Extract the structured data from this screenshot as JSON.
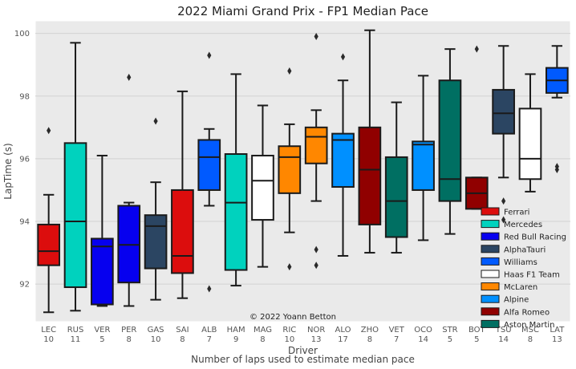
{
  "chart_data": {
    "type": "box",
    "title": "2022 Miami Grand Prix - FP1 Median Pace",
    "xlabel": "Driver",
    "xlabel_sub": "Number of laps used to estimate median pace",
    "ylabel": "LapTime (s)",
    "ylim": [
      90.8,
      100.4
    ],
    "yticks": [
      "92",
      "94",
      "96",
      "98",
      "100"
    ],
    "grid": true,
    "legend_position": "bottom-right",
    "credit": "© 2022 Yoann Betton",
    "teams": [
      {
        "name": "Ferrari",
        "color": "#dc0d0d"
      },
      {
        "name": "Mercedes",
        "color": "#00d2be"
      },
      {
        "name": "Red Bull Racing",
        "color": "#0600ef"
      },
      {
        "name": "AlphaTauri",
        "color": "#2b4562"
      },
      {
        "name": "Williams",
        "color": "#005aff"
      },
      {
        "name": "Haas F1 Team",
        "color": "#ffffff"
      },
      {
        "name": "McLaren",
        "color": "#ff8700"
      },
      {
        "name": "Alpine",
        "color": "#0090ff"
      },
      {
        "name": "Alfa Romeo",
        "color": "#900000"
      },
      {
        "name": "Aston Martin",
        "color": "#006f62"
      }
    ],
    "drivers": [
      {
        "code": "LEC",
        "laps": "10",
        "team": "Ferrari",
        "whislo": 91.1,
        "q1": 92.6,
        "med": 93.05,
        "q3": 93.9,
        "whishi": 94.85,
        "fliers": [
          96.9
        ]
      },
      {
        "code": "RUS",
        "laps": "11",
        "team": "Mercedes",
        "whislo": 91.15,
        "q1": 91.9,
        "med": 94.0,
        "q3": 96.5,
        "whishi": 99.7,
        "fliers": []
      },
      {
        "code": "VER",
        "laps": "5",
        "team": "Red Bull Racing",
        "whislo": 91.3,
        "q1": 91.35,
        "med": 93.2,
        "q3": 93.45,
        "whishi": 96.1,
        "fliers": []
      },
      {
        "code": "PER",
        "laps": "8",
        "team": "Red Bull Racing",
        "whislo": 91.3,
        "q1": 92.05,
        "med": 93.25,
        "q3": 94.5,
        "whishi": 94.6,
        "fliers": [
          98.6
        ]
      },
      {
        "code": "GAS",
        "laps": "10",
        "team": "AlphaTauri",
        "whislo": 91.5,
        "q1": 92.5,
        "med": 93.85,
        "q3": 94.2,
        "whishi": 95.25,
        "fliers": [
          97.2
        ]
      },
      {
        "code": "SAI",
        "laps": "8",
        "team": "Ferrari",
        "whislo": 91.55,
        "q1": 92.35,
        "med": 92.9,
        "q3": 95.0,
        "whishi": 98.15,
        "fliers": []
      },
      {
        "code": "ALB",
        "laps": "7",
        "team": "Williams",
        "whislo": 94.5,
        "q1": 95.0,
        "med": 96.05,
        "q3": 96.6,
        "whishi": 96.95,
        "fliers": [
          99.3,
          91.85
        ]
      },
      {
        "code": "HAM",
        "laps": "9",
        "team": "Mercedes",
        "whislo": 91.95,
        "q1": 92.45,
        "med": 94.6,
        "q3": 96.15,
        "whishi": 98.7,
        "fliers": []
      },
      {
        "code": "MAG",
        "laps": "8",
        "team": "Haas F1 Team",
        "whislo": 92.55,
        "q1": 94.05,
        "med": 95.3,
        "q3": 96.1,
        "whishi": 97.7,
        "fliers": []
      },
      {
        "code": "RIC",
        "laps": "10",
        "team": "McLaren",
        "whislo": 93.65,
        "q1": 94.9,
        "med": 96.05,
        "q3": 96.4,
        "whishi": 97.1,
        "fliers": [
          98.8,
          92.55
        ]
      },
      {
        "code": "NOR",
        "laps": "13",
        "team": "McLaren",
        "whislo": 94.65,
        "q1": 95.85,
        "med": 96.7,
        "q3": 97.0,
        "whishi": 97.55,
        "fliers": [
          99.9,
          93.1,
          92.6
        ]
      },
      {
        "code": "ALO",
        "laps": "17",
        "team": "Alpine",
        "whislo": 92.9,
        "q1": 95.1,
        "med": 96.6,
        "q3": 96.8,
        "whishi": 98.5,
        "fliers": [
          99.25
        ]
      },
      {
        "code": "ZHO",
        "laps": "8",
        "team": "Alfa Romeo",
        "whislo": 93.0,
        "q1": 93.9,
        "med": 95.65,
        "q3": 97.0,
        "whishi": 100.1,
        "fliers": []
      },
      {
        "code": "VET",
        "laps": "7",
        "team": "Aston Martin",
        "whislo": 93.0,
        "q1": 93.5,
        "med": 94.65,
        "q3": 96.05,
        "whishi": 97.8,
        "fliers": []
      },
      {
        "code": "OCO",
        "laps": "14",
        "team": "Alpine",
        "whislo": 93.4,
        "q1": 95.0,
        "med": 96.45,
        "q3": 96.55,
        "whishi": 98.65,
        "fliers": []
      },
      {
        "code": "STR",
        "laps": "5",
        "team": "Aston Martin",
        "whislo": 93.6,
        "q1": 94.65,
        "med": 95.35,
        "q3": 98.5,
        "whishi": 99.5,
        "fliers": []
      },
      {
        "code": "BOT",
        "laps": "5",
        "team": "Alfa Romeo",
        "whislo": 94.4,
        "q1": 94.4,
        "med": 94.9,
        "q3": 95.4,
        "whishi": 95.4,
        "fliers": [
          99.5
        ]
      },
      {
        "code": "TSU",
        "laps": "14",
        "team": "AlphaTauri",
        "whislo": 95.4,
        "q1": 96.8,
        "med": 97.45,
        "q3": 98.2,
        "whishi": 99.6,
        "fliers": [
          94.65,
          94.05
        ]
      },
      {
        "code": "MSC",
        "laps": "8",
        "team": "Haas F1 Team",
        "whislo": 94.95,
        "q1": 95.35,
        "med": 96.0,
        "q3": 97.6,
        "whishi": 98.7,
        "fliers": []
      },
      {
        "code": "LAT",
        "laps": "13",
        "team": "Williams",
        "whislo": 97.95,
        "q1": 98.1,
        "med": 98.5,
        "q3": 98.9,
        "whishi": 99.6,
        "fliers": [
          95.75,
          95.65
        ]
      }
    ]
  }
}
